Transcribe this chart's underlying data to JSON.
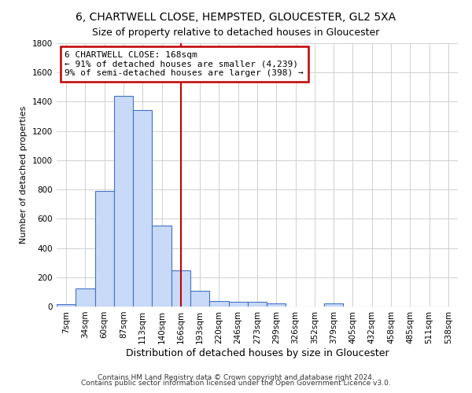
{
  "title": "6, CHARTWELL CLOSE, HEMPSTED, GLOUCESTER, GL2 5XA",
  "subtitle": "Size of property relative to detached houses in Gloucester",
  "xlabel": "Distribution of detached houses by size in Gloucester",
  "ylabel": "Number of detached properties",
  "footnote1": "Contains HM Land Registry data © Crown copyright and database right 2024.",
  "footnote2": "Contains public sector information licensed under the Open Government Licence v3.0.",
  "bar_labels": [
    "7sqm",
    "34sqm",
    "60sqm",
    "87sqm",
    "113sqm",
    "140sqm",
    "166sqm",
    "193sqm",
    "220sqm",
    "246sqm",
    "273sqm",
    "299sqm",
    "326sqm",
    "352sqm",
    "379sqm",
    "405sqm",
    "432sqm",
    "458sqm",
    "485sqm",
    "511sqm",
    "538sqm"
  ],
  "bar_values": [
    15,
    125,
    790,
    1440,
    1345,
    555,
    245,
    110,
    35,
    30,
    30,
    20,
    0,
    0,
    20,
    0,
    0,
    0,
    0,
    0,
    0
  ],
  "bar_color": "#c9daf8",
  "bar_edge_color": "#4472c4",
  "vline_x": 6,
  "vline_color": "#c00000",
  "annotation_line1": "6 CHARTWELL CLOSE: 168sqm",
  "annotation_line2": "← 91% of detached houses are smaller (4,239)",
  "annotation_line3": "9% of semi-detached houses are larger (398) →",
  "annotation_box_color": "#c00000",
  "ylim": [
    0,
    1800
  ],
  "yticks": [
    0,
    200,
    400,
    600,
    800,
    1000,
    1200,
    1400,
    1600,
    1800
  ],
  "grid_color": "#d0d0d0",
  "background_color": "#ffffff",
  "title_fontsize": 10,
  "subtitle_fontsize": 9,
  "xlabel_fontsize": 9,
  "ylabel_fontsize": 8,
  "tick_fontsize": 7.5,
  "annot_fontsize": 8
}
